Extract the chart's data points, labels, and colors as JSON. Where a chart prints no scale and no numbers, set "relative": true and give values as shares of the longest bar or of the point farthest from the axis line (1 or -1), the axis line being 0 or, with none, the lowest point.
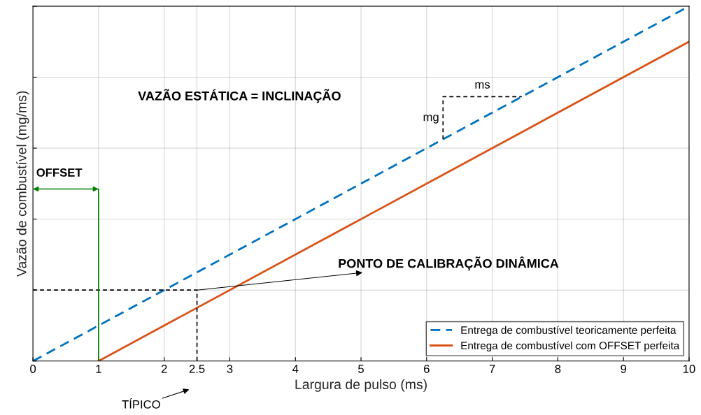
{
  "chart_data": {
    "type": "line",
    "relative": true,
    "xlabel": "Largura de pulso (ms)",
    "ylabel": "Vazão de combustível (mg/ms)",
    "xlim": [
      0,
      10
    ],
    "xticks": [
      0,
      1,
      2,
      2.5,
      3,
      4,
      5,
      6,
      7,
      8,
      9,
      10
    ],
    "tick_labels": "x",
    "grid": true,
    "legend": "bottom right",
    "series": [
      {
        "name": "Entrega de combustível teoricamente perfeita",
        "color": "#0072bd",
        "line_style": "dashed",
        "x": [
          0,
          10
        ],
        "values": [
          0,
          1
        ]
      },
      {
        "name": "Entrega de combustível com OFFSET perfeita",
        "color": "#d95319",
        "line_style": "solid",
        "x": [
          1,
          10
        ],
        "values": [
          0,
          0.9
        ]
      },
      {
        "color": "#000000",
        "line_style": "dashed",
        "x": [
          0,
          2.5,
          2.5
        ],
        "values": [
          0.2,
          0.2,
          0
        ]
      },
      {
        "color": "#000000",
        "line_style": "dashed",
        "x": [
          6.25,
          6.25,
          7.45
        ],
        "values": [
          0.625,
          0.745,
          0.745
        ]
      },
      {
        "color": "#008000",
        "line_style": "solid",
        "x": [
          1,
          1
        ],
        "values": [
          0,
          0.485
        ]
      }
    ],
    "annotations": [
      "VAZÃO ESTÁTICA = INCLINAÇÃO",
      {
        "text": "ms",
        "x": 6.85,
        "y": 0.745
      },
      {
        "text": "mg",
        "x": 6.25,
        "y": 0.685
      },
      "OFFSET",
      {
        "text": "PONTO DE CALIBRAÇÃO DINÂMICA",
        "x": 2.5,
        "y": 0.2
      },
      "TÍPICO"
    ]
  }
}
